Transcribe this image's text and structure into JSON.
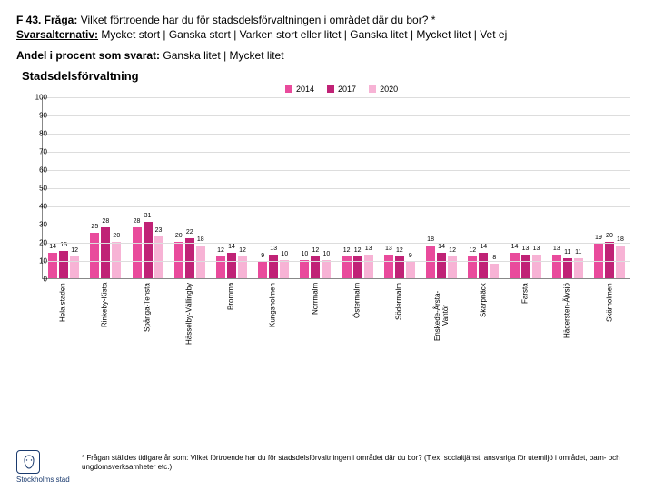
{
  "question": {
    "label": "F 43. Fråga:",
    "text": " Vilket förtroende har du för stadsdelsförvaltningen i området där du bor? *"
  },
  "svar": {
    "label": "Svarsalternativ:",
    "text": " Mycket stort | Ganska stort | Varken stort eller litet | Ganska litet | Mycket litet | Vet ej"
  },
  "andel": {
    "label": "Andel i procent som svarat:",
    "text": " Ganska litet | Mycket litet"
  },
  "chart": {
    "title": "Stadsdelsförvaltning",
    "ymax": 100,
    "ytick_step": 10,
    "legend": [
      {
        "label": "2014",
        "color": "#e94b9c"
      },
      {
        "label": "2017",
        "color": "#c02276"
      },
      {
        "label": "2020",
        "color": "#f7b3d5"
      }
    ],
    "series_colors": [
      "#e94b9c",
      "#c02276",
      "#f7b3d5"
    ],
    "categories": [
      {
        "name": "Hela staden",
        "values": [
          14,
          15,
          12
        ]
      },
      {
        "name": "Rinkeby-Kista",
        "values": [
          25,
          28,
          20
        ]
      },
      {
        "name": "Spånga-Tensta",
        "values": [
          28,
          31,
          23
        ]
      },
      {
        "name": "Hässelby-Vällingby",
        "values": [
          20,
          22,
          18
        ]
      },
      {
        "name": "Bromma",
        "values": [
          12,
          14,
          12
        ]
      },
      {
        "name": "Kungsholmen",
        "values": [
          9,
          13,
          10
        ]
      },
      {
        "name": "Norrmalm",
        "values": [
          10,
          12,
          10
        ]
      },
      {
        "name": "Östermalm",
        "values": [
          12,
          12,
          13
        ]
      },
      {
        "name": "Södermalm",
        "values": [
          13,
          12,
          9
        ]
      },
      {
        "name": "Enskede-Årsta-Vantör",
        "values": [
          18,
          14,
          12
        ]
      },
      {
        "name": "Skarpnäck",
        "values": [
          12,
          14,
          8
        ]
      },
      {
        "name": "Farsta",
        "values": [
          14,
          13,
          13
        ]
      },
      {
        "name": "Hägersten-Älvsjö",
        "values": [
          13,
          11,
          11
        ]
      },
      {
        "name": "Skärholmen",
        "values": [
          19,
          20,
          18
        ]
      }
    ]
  },
  "logo": {
    "text": "Stockholms stad",
    "color": "#1a3a6e"
  },
  "footnote": "* Frågan ställdes tidigare år som: Vilket förtroende har du för stadsdelsförvaltningen i området där du bor? (T.ex. socialtjänst, ansvariga för utemiljö i området, barn- och ungdomsverksamheter etc.)"
}
